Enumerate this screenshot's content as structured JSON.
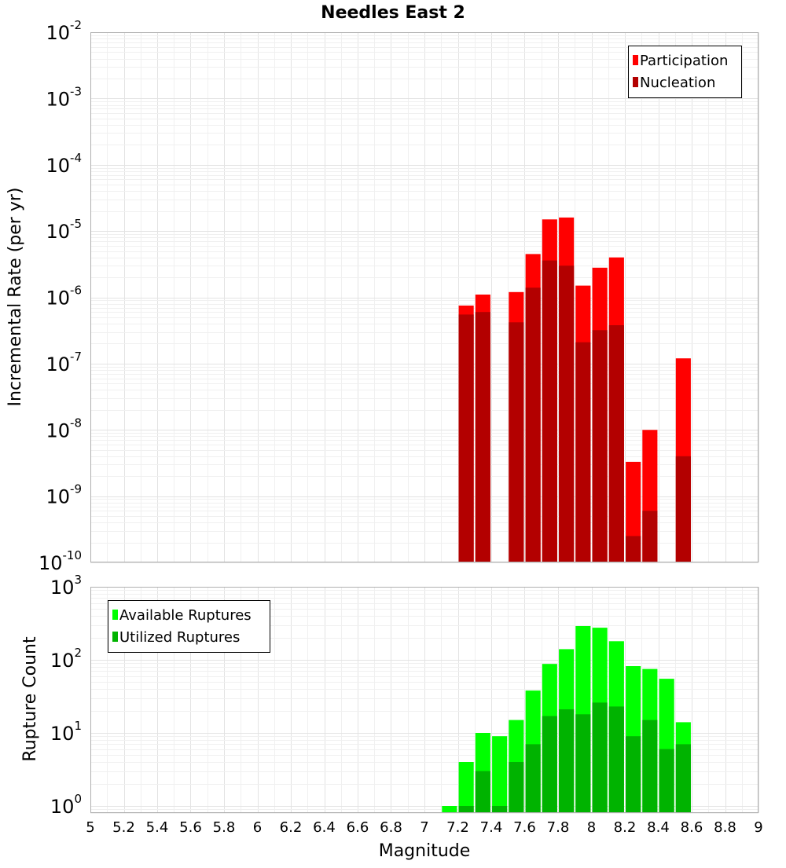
{
  "chart_data": [
    {
      "type": "bar",
      "title": "Needles East 2",
      "ylabel": "Incremental Rate (per yr)",
      "xlabel": "",
      "xlim": [
        5,
        9
      ],
      "ylim": [
        1e-10,
        0.01
      ],
      "yscale": "log",
      "bar_width": 0.09,
      "grid": true,
      "legend_position": "top-right",
      "y_tick_labels": [
        {
          "base": "10",
          "exp": "-2"
        },
        {
          "base": "10",
          "exp": "-3"
        },
        {
          "base": "10",
          "exp": "-4"
        },
        {
          "base": "10",
          "exp": "-5"
        },
        {
          "base": "10",
          "exp": "-6"
        },
        {
          "base": "10",
          "exp": "-7"
        },
        {
          "base": "10",
          "exp": "-8"
        },
        {
          "base": "10",
          "exp": "-9"
        },
        {
          "base": "10",
          "exp": "-10"
        }
      ],
      "x": [
        7.25,
        7.35,
        7.55,
        7.65,
        7.75,
        7.85,
        7.95,
        8.05,
        8.15,
        8.25,
        8.35,
        8.55
      ],
      "series": [
        {
          "name": "Participation",
          "color": "#ff0000",
          "values": [
            7.5e-07,
            1.1e-06,
            1.2e-06,
            4.5e-06,
            1.5e-05,
            1.6e-05,
            1.5e-06,
            2.8e-06,
            4e-06,
            3.3e-09,
            1e-08,
            1.2e-07
          ]
        },
        {
          "name": "Nucleation",
          "color": "#b30000",
          "values": [
            5.5e-07,
            6e-07,
            4.2e-07,
            1.4e-06,
            3.6e-06,
            3e-06,
            2.1e-07,
            3.2e-07,
            3.8e-07,
            2.5e-10,
            6e-10,
            4e-09
          ]
        }
      ]
    },
    {
      "type": "bar",
      "title": "",
      "ylabel": "Rupture Count",
      "xlabel": "Magnitude",
      "xlim": [
        5,
        9
      ],
      "ylim": [
        0.8,
        1000
      ],
      "yscale": "log",
      "bar_width": 0.09,
      "grid": true,
      "legend_position": "top-left",
      "y_tick_labels": [
        {
          "value": 1000,
          "base": "10",
          "exp": "3"
        },
        {
          "value": 100,
          "base": "10",
          "exp": "2"
        },
        {
          "value": 10,
          "base": "10",
          "exp": "1"
        },
        {
          "value": 1,
          "base": "10",
          "exp": "0"
        }
      ],
      "x_tick_labels": [
        "5",
        "5.2",
        "5.4",
        "5.6",
        "5.8",
        "6",
        "6.2",
        "6.4",
        "6.6",
        "6.8",
        "7",
        "7.2",
        "7.4",
        "7.6",
        "7.8",
        "8",
        "8.2",
        "8.4",
        "8.6",
        "8.8",
        "9"
      ],
      "x": [
        7.15,
        7.25,
        7.35,
        7.45,
        7.55,
        7.65,
        7.75,
        7.85,
        7.95,
        8.05,
        8.15,
        8.25,
        8.35,
        8.45,
        8.55
      ],
      "series": [
        {
          "name": "Available Ruptures",
          "color": "#00ff00",
          "values": [
            1,
            4,
            10,
            9,
            15,
            38,
            88,
            140,
            290,
            275,
            180,
            82,
            75,
            55,
            14
          ]
        },
        {
          "name": "Utilized Ruptures",
          "color": "#00b300",
          "values": [
            null,
            1,
            3,
            1,
            4,
            7,
            17,
            21,
            18,
            26,
            23,
            9,
            15,
            6,
            7
          ]
        }
      ]
    }
  ]
}
